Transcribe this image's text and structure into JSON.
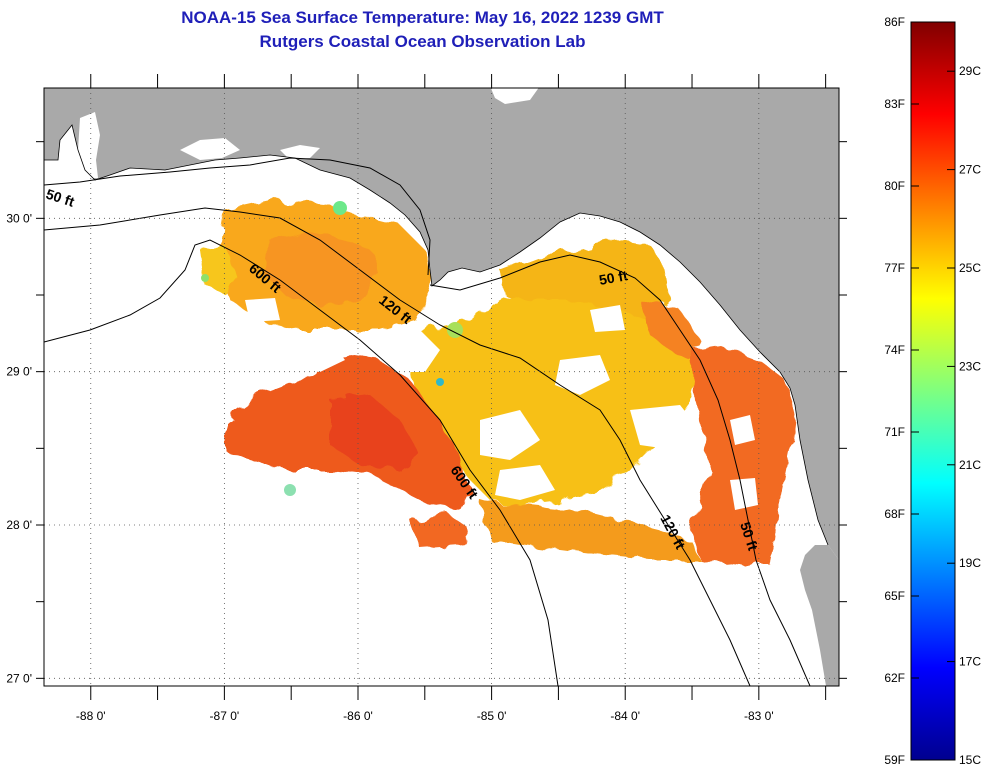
{
  "title": {
    "line1": "NOAA-15 Sea Surface Temperature:  May 16, 2022 1239 GMT",
    "line2": "Rutgers Coastal Ocean Observation Lab"
  },
  "colors": {
    "land": "#a9a9a9",
    "water_nodata": "#ffffff",
    "title": "#1f1fb8"
  },
  "map": {
    "x_ticks": [
      {
        "value": -88,
        "label": "-88 0'"
      },
      {
        "value": -87,
        "label": "-87 0'"
      },
      {
        "value": -86,
        "label": "-86 0'"
      },
      {
        "value": -85,
        "label": "-85 0'"
      },
      {
        "value": -84,
        "label": "-84 0'"
      },
      {
        "value": -83,
        "label": "-83 0'"
      }
    ],
    "y_ticks": [
      {
        "value": 30,
        "label": "30 0'"
      },
      {
        "value": 29,
        "label": "29 0'"
      },
      {
        "value": 28,
        "label": "28 0'"
      },
      {
        "value": 27,
        "label": "27 0'"
      }
    ],
    "lon_range": [
      -88.35,
      -82.4
    ],
    "lat_range": [
      26.95,
      30.85
    ],
    "grid": "dotted",
    "contour_labels": {
      "c50_west": "50 ft",
      "c600_north": "600 ft",
      "c120_mid": "120 ft",
      "c50_big_bend": "50 ft",
      "c600_south": "600 ft",
      "c120_south": "120 ft",
      "c50_south": "50 ft"
    }
  },
  "colorbar": {
    "fahrenheit": [
      "86F",
      "83F",
      "80F",
      "77F",
      "74F",
      "71F",
      "68F",
      "65F",
      "62F",
      "59F"
    ],
    "celsius": [
      "29C",
      "27C",
      "25C",
      "23C",
      "21C",
      "19C",
      "17C",
      "15C"
    ],
    "range_f": [
      59,
      86
    ],
    "palette": "jet"
  }
}
